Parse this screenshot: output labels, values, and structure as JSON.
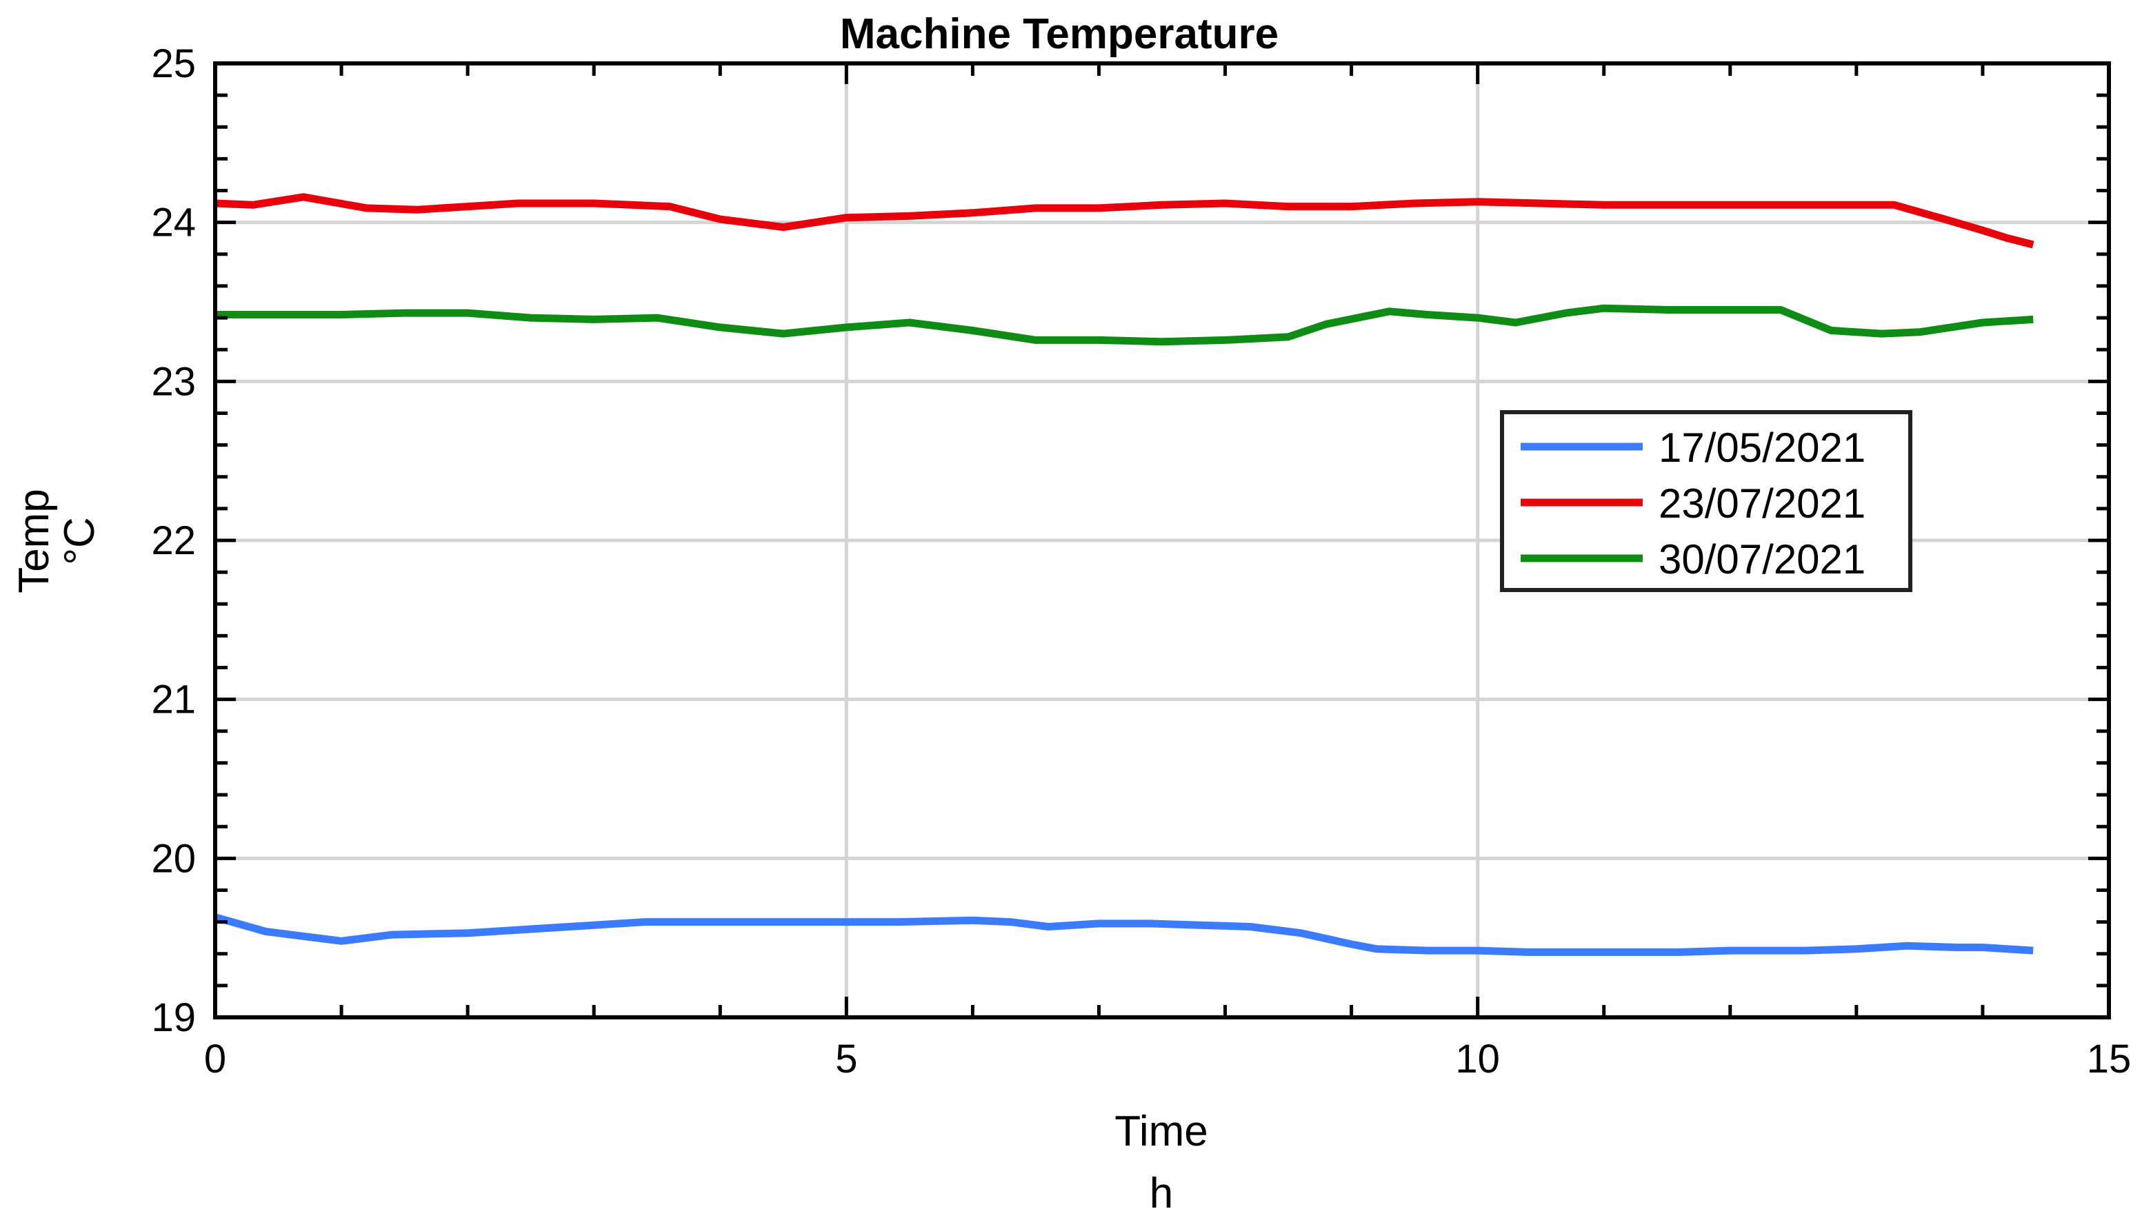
{
  "chart_data": {
    "type": "line",
    "title": "Machine Temperature",
    "xlabel": [
      "Time",
      "h"
    ],
    "ylabel": [
      "Temp",
      "°C"
    ],
    "xlim": [
      0,
      15
    ],
    "ylim": [
      19,
      25
    ],
    "x_ticks": [
      0,
      5,
      10,
      15
    ],
    "y_ticks": [
      19,
      20,
      21,
      22,
      23,
      24,
      25
    ],
    "grid": true,
    "legend_position": "center-right",
    "series": [
      {
        "name": "17/05/2021",
        "color": "#3b7bff",
        "x": [
          0,
          0.4,
          1.0,
          1.4,
          2.0,
          2.4,
          3.0,
          3.4,
          4.0,
          4.6,
          5.0,
          5.4,
          6.0,
          6.3,
          6.6,
          7.0,
          7.4,
          7.8,
          8.2,
          8.6,
          9.0,
          9.2,
          9.6,
          10.0,
          10.4,
          11.0,
          11.6,
          12.0,
          12.6,
          13.0,
          13.4,
          13.8,
          14.0,
          14.4
        ],
        "values": [
          19.63,
          19.54,
          19.48,
          19.52,
          19.53,
          19.55,
          19.58,
          19.6,
          19.6,
          19.6,
          19.6,
          19.6,
          19.61,
          19.6,
          19.57,
          19.59,
          19.59,
          19.58,
          19.57,
          19.53,
          19.46,
          19.43,
          19.42,
          19.42,
          19.41,
          19.41,
          19.41,
          19.42,
          19.42,
          19.43,
          19.45,
          19.44,
          19.44,
          19.42
        ]
      },
      {
        "name": "23/07/2021",
        "color": "#e8000b",
        "x": [
          0,
          0.3,
          0.7,
          1.2,
          1.6,
          2.0,
          2.4,
          3.0,
          3.6,
          4.0,
          4.5,
          5.0,
          5.5,
          6.0,
          6.5,
          7.0,
          7.5,
          8.0,
          8.5,
          9.0,
          9.5,
          10.0,
          10.5,
          11.0,
          11.5,
          12.0,
          12.5,
          13.0,
          13.3,
          13.7,
          14.0,
          14.2,
          14.4
        ],
        "values": [
          24.12,
          24.11,
          24.16,
          24.09,
          24.08,
          24.1,
          24.12,
          24.12,
          24.1,
          24.02,
          23.97,
          24.03,
          24.04,
          24.06,
          24.09,
          24.09,
          24.11,
          24.12,
          24.1,
          24.1,
          24.12,
          24.13,
          24.12,
          24.11,
          24.11,
          24.11,
          24.11,
          24.11,
          24.11,
          24.02,
          23.95,
          23.9,
          23.86
        ]
      },
      {
        "name": "30/07/2021",
        "color": "#0f8c13",
        "x": [
          0,
          0.5,
          1.0,
          1.5,
          2.0,
          2.5,
          3.0,
          3.5,
          4.0,
          4.5,
          5.0,
          5.5,
          6.0,
          6.5,
          7.0,
          7.5,
          8.0,
          8.5,
          8.8,
          9.3,
          9.6,
          10.0,
          10.3,
          10.7,
          11.0,
          11.5,
          12.0,
          12.4,
          12.8,
          13.2,
          13.5,
          14.0,
          14.4
        ],
        "values": [
          23.42,
          23.42,
          23.42,
          23.43,
          23.43,
          23.4,
          23.39,
          23.4,
          23.34,
          23.3,
          23.34,
          23.37,
          23.32,
          23.26,
          23.26,
          23.25,
          23.26,
          23.28,
          23.36,
          23.44,
          23.42,
          23.4,
          23.37,
          23.43,
          23.46,
          23.45,
          23.45,
          23.45,
          23.32,
          23.3,
          23.31,
          23.37,
          23.39
        ]
      }
    ]
  }
}
